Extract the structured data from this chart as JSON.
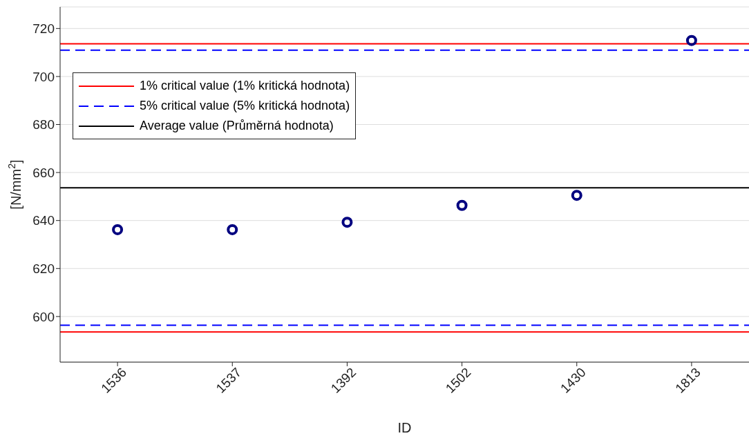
{
  "chart_data": {
    "type": "scatter",
    "xlabel": "ID",
    "ylabel": "[N/mm$^{2}$]",
    "categories": [
      "1536",
      "1537",
      "1392",
      "1502",
      "1430",
      "1813"
    ],
    "series": [
      {
        "color": "#000080",
        "values": [
          636.2,
          636.2,
          639.3,
          646.3,
          650.5,
          715
        ]
      }
    ],
    "ylim": [
      581,
      729
    ],
    "yticks": [
      600,
      620,
      640,
      660,
      680,
      700,
      720
    ],
    "grid": "y",
    "marker": "circle",
    "legend": "top left",
    "ref_lines": [
      {
        "axis": "y",
        "value": 713.6,
        "label": "1% critical value (1% kritická hodnota)",
        "color": "#ff0000",
        "line_style": "solid"
      },
      {
        "axis": "y",
        "value": 711,
        "label": "5% critical value (5% kritická hodnota)",
        "color": "#0000ff",
        "line_style": "dashed"
      },
      {
        "axis": "y",
        "value": 653.6,
        "label": "Average value (Průměrná hodnota)",
        "color": "#000000",
        "line_style": "solid"
      },
      {
        "axis": "y",
        "value": 596.4,
        "label": null,
        "color": "#0000ff",
        "line_style": "dashed"
      },
      {
        "axis": "y",
        "value": 593.6,
        "label": null,
        "color": "#ff0000",
        "line_style": "solid"
      }
    ]
  }
}
